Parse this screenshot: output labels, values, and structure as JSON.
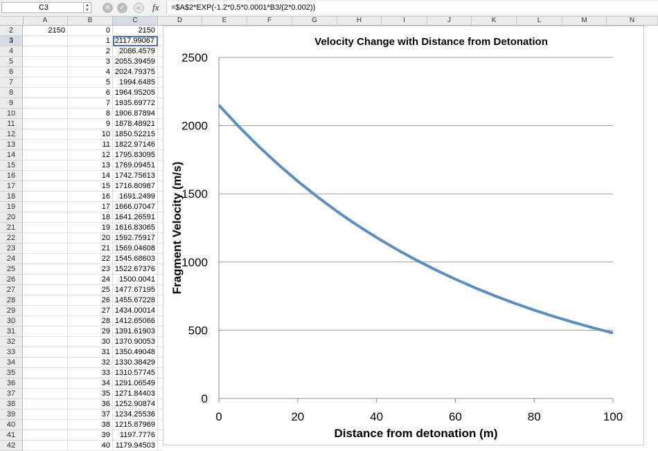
{
  "formula_bar": {
    "name_box": "C3",
    "fx_label": "fx",
    "formula": "=$A$2*EXP(-1.2*0.5*0.0001*B3/(2*0.002))"
  },
  "columns": [
    "A",
    "B",
    "C",
    "D",
    "E",
    "F",
    "G",
    "H",
    "I",
    "J",
    "K",
    "L",
    "M",
    "N"
  ],
  "selected_cell": "C3",
  "cell_A2": "2150",
  "rows": [
    {
      "r": "2",
      "b": "0",
      "c": "2150"
    },
    {
      "r": "3",
      "b": "1",
      "c": "2117.99067"
    },
    {
      "r": "4",
      "b": "2",
      "c": "2086.4579"
    },
    {
      "r": "5",
      "b": "3",
      "c": "2055.39459"
    },
    {
      "r": "6",
      "b": "4",
      "c": "2024.79375"
    },
    {
      "r": "7",
      "b": "5",
      "c": "1994.6485"
    },
    {
      "r": "8",
      "b": "6",
      "c": "1964.95205"
    },
    {
      "r": "9",
      "b": "7",
      "c": "1935.69772"
    },
    {
      "r": "10",
      "b": "8",
      "c": "1906.87894"
    },
    {
      "r": "11",
      "b": "9",
      "c": "1878.48921"
    },
    {
      "r": "12",
      "b": "10",
      "c": "1850.52215"
    },
    {
      "r": "13",
      "b": "11",
      "c": "1822.97146"
    },
    {
      "r": "14",
      "b": "12",
      "c": "1795.83095"
    },
    {
      "r": "15",
      "b": "13",
      "c": "1769.09451"
    },
    {
      "r": "16",
      "b": "14",
      "c": "1742.75613"
    },
    {
      "r": "17",
      "b": "15",
      "c": "1716.80987"
    },
    {
      "r": "18",
      "b": "16",
      "c": "1691.2499"
    },
    {
      "r": "19",
      "b": "17",
      "c": "1666.07047"
    },
    {
      "r": "20",
      "b": "18",
      "c": "1641.26591"
    },
    {
      "r": "21",
      "b": "19",
      "c": "1616.83065"
    },
    {
      "r": "22",
      "b": "20",
      "c": "1592.75917"
    },
    {
      "r": "23",
      "b": "21",
      "c": "1569.04608"
    },
    {
      "r": "24",
      "b": "22",
      "c": "1545.68603"
    },
    {
      "r": "25",
      "b": "23",
      "c": "1522.67376"
    },
    {
      "r": "26",
      "b": "24",
      "c": "1500.0041"
    },
    {
      "r": "27",
      "b": "25",
      "c": "1477.67195"
    },
    {
      "r": "28",
      "b": "26",
      "c": "1455.67228"
    },
    {
      "r": "29",
      "b": "27",
      "c": "1434.00014"
    },
    {
      "r": "30",
      "b": "28",
      "c": "1412.65066"
    },
    {
      "r": "31",
      "b": "29",
      "c": "1391.61903"
    },
    {
      "r": "32",
      "b": "30",
      "c": "1370.90053"
    },
    {
      "r": "33",
      "b": "31",
      "c": "1350.49048"
    },
    {
      "r": "34",
      "b": "32",
      "c": "1330.38429"
    },
    {
      "r": "35",
      "b": "33",
      "c": "1310.57745"
    },
    {
      "r": "36",
      "b": "34",
      "c": "1291.06549"
    },
    {
      "r": "37",
      "b": "35",
      "c": "1271.84403"
    },
    {
      "r": "38",
      "b": "36",
      "c": "1252.90874"
    },
    {
      "r": "39",
      "b": "37",
      "c": "1234.25536"
    },
    {
      "r": "40",
      "b": "38",
      "c": "1215.87969"
    },
    {
      "r": "41",
      "b": "39",
      "c": "1197.7776"
    },
    {
      "r": "42",
      "b": "40",
      "c": "1179.94503"
    }
  ],
  "chart_data": {
    "type": "line",
    "title": "Velocity Change with Distance from Detonation",
    "xlabel": "Distance from detonation (m)",
    "ylabel": "Fragment Velocity (m/s)",
    "xlim": [
      0,
      100
    ],
    "ylim": [
      0,
      2500
    ],
    "xticks": [
      "0",
      "20",
      "40",
      "60",
      "80",
      "100"
    ],
    "yticks": [
      "0",
      "500",
      "1000",
      "1500",
      "2000",
      "2500"
    ],
    "grid": "horizontal",
    "line_color": "#5b8ec0",
    "series": [
      {
        "x": [
          0,
          5,
          10,
          15,
          20,
          25,
          30,
          35,
          40,
          45,
          50,
          55,
          60,
          65,
          70,
          75,
          80,
          85,
          90,
          95,
          100
        ],
        "values": [
          2150,
          1994.6,
          1850.5,
          1716.8,
          1592.8,
          1477.7,
          1370.9,
          1271.8,
          1179.9,
          1094.6,
          1015.5,
          942.1,
          874.0,
          810.9,
          752.3,
          697.9,
          647.5,
          600.7,
          557.3,
          517.0,
          479.7
        ]
      }
    ]
  }
}
